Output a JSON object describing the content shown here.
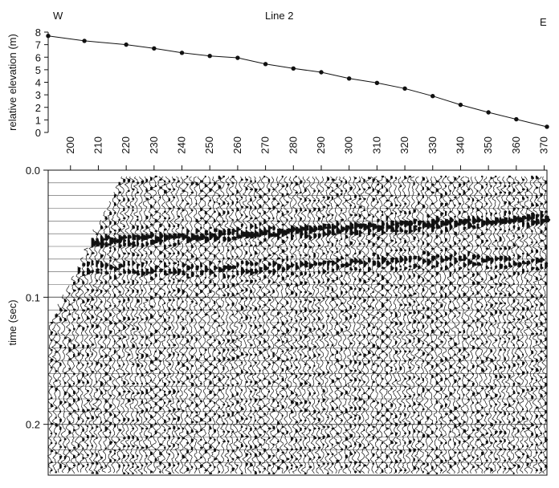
{
  "figure": {
    "title": "Line 2",
    "west_label": "W",
    "east_label": "E"
  },
  "colors": {
    "ink": "#111111",
    "background": "#ffffff"
  },
  "chart_data": [
    {
      "type": "line",
      "title": "Line 2",
      "xlabel": "",
      "ylabel": "relative elevation (m)",
      "x_ticks": [
        200,
        210,
        220,
        230,
        240,
        250,
        260,
        270,
        280,
        290,
        300,
        310,
        320,
        330,
        340,
        350,
        360,
        370
      ],
      "y_ticks": [
        0,
        1,
        2,
        3,
        4,
        5,
        6,
        7,
        8
      ],
      "xlim": [
        192,
        371
      ],
      "ylim": [
        0,
        8
      ],
      "grid": false,
      "series": [
        {
          "x": [
            192,
            205,
            220,
            230,
            240,
            250,
            260,
            270,
            280,
            290,
            300,
            310,
            320,
            330,
            340,
            350,
            360,
            371
          ],
          "y": [
            7.7,
            7.3,
            7.0,
            6.7,
            6.35,
            6.1,
            5.95,
            5.45,
            5.1,
            4.8,
            4.3,
            3.95,
            3.5,
            2.9,
            2.2,
            1.6,
            1.05,
            0.45
          ]
        }
      ]
    },
    {
      "type": "heatmap",
      "xlabel": "",
      "ylabel": "time (sec)",
      "x_ticks": [
        200,
        210,
        220,
        230,
        240,
        250,
        260,
        270,
        280,
        290,
        300,
        310,
        320,
        330,
        340,
        350,
        360,
        370
      ],
      "y_ticks": [
        0.0,
        0.1,
        0.2
      ],
      "y_tick_labels": [
        "0.0",
        "0.1",
        "0.2"
      ],
      "xlim": [
        192,
        371
      ],
      "ylim": [
        0.0,
        0.24
      ],
      "y_inverted": true,
      "grid": true,
      "notes": "variable-area seismic wiggle traces"
    }
  ]
}
